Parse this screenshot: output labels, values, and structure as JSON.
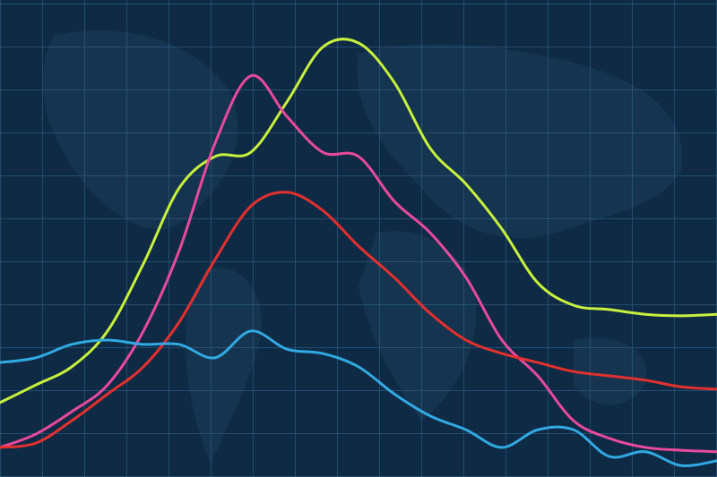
{
  "chart_data": {
    "type": "line",
    "x": [
      0,
      1,
      2,
      3,
      4,
      5,
      6,
      7,
      8,
      9,
      10,
      11,
      12,
      13,
      14,
      15,
      16,
      17,
      18,
      19,
      20
    ],
    "xlim": [
      0,
      20
    ],
    "ylim": [
      0,
      100
    ],
    "series": [
      {
        "color": "#c8f03c",
        "values": [
          15.6,
          19.3,
          23.1,
          30.6,
          44.7,
          60.6,
          67.2,
          68.1,
          78.6,
          90.1,
          91.0,
          82.7,
          68.9,
          61.4,
          52.0,
          40.7,
          36.0,
          35.1,
          34.1,
          33.8,
          34.1
        ]
      },
      {
        "color": "#e84a9c",
        "values": [
          6.2,
          9.0,
          13.7,
          19.3,
          30.6,
          47.5,
          70.0,
          84.1,
          75.6,
          68.1,
          67.2,
          57.8,
          51.2,
          41.8,
          28.7,
          21.2,
          11.8,
          8.1,
          6.2,
          5.6,
          5.3
        ]
      },
      {
        "color": "#e3302e",
        "values": [
          6.2,
          7.1,
          11.8,
          17.4,
          23.1,
          32.5,
          45.6,
          56.8,
          59.7,
          55.9,
          48.4,
          41.8,
          34.3,
          28.7,
          25.9,
          24.0,
          22.1,
          21.2,
          20.3,
          18.9,
          18.4
        ]
      },
      {
        "color": "#31a9e2",
        "values": [
          24.0,
          25.0,
          27.8,
          28.7,
          27.8,
          27.8,
          25.0,
          30.6,
          26.8,
          25.9,
          23.1,
          17.4,
          12.8,
          9.9,
          6.2,
          9.9,
          9.9,
          4.3,
          5.3,
          2.4,
          3.4
        ]
      }
    ]
  }
}
